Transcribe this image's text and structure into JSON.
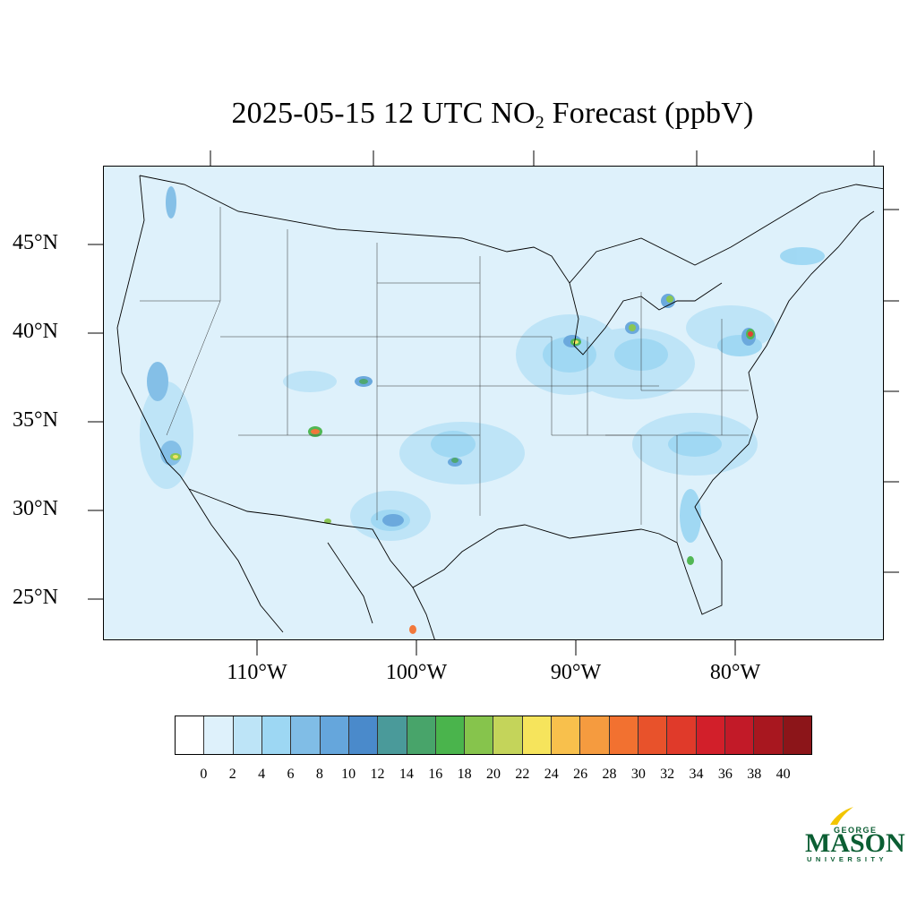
{
  "title": {
    "prefix": "2025-05-15 12 UTC NO",
    "subscript": "2",
    "suffix": " Forecast (ppbV)"
  },
  "map": {
    "region": "Contiguous United States",
    "background_color": "#def1fb",
    "lat_labels": [
      "45°N",
      "40°N",
      "35°N",
      "30°N",
      "25°N"
    ],
    "lon_labels": [
      "110°W",
      "100°W",
      "90°W",
      "80°W"
    ]
  },
  "colorbar": {
    "labels": [
      "0",
      "2",
      "4",
      "6",
      "8",
      "10",
      "12",
      "14",
      "16",
      "18",
      "20",
      "22",
      "24",
      "26",
      "28",
      "30",
      "32",
      "34",
      "36",
      "38",
      "40"
    ],
    "colors": [
      "#ffffff",
      "#def1fb",
      "#bde4f7",
      "#9dd7f3",
      "#80bde6",
      "#65a6dc",
      "#4a8acb",
      "#4a9a9a",
      "#48a46a",
      "#4ab44c",
      "#86c44c",
      "#c4d45a",
      "#f6e45c",
      "#f8c04c",
      "#f59b3f",
      "#f27130",
      "#e8522b",
      "#e03a2a",
      "#d21f2a",
      "#c21a28",
      "#a8171f",
      "#8c1519"
    ]
  },
  "logo": {
    "line1": "GEORGE",
    "line2": "MASON",
    "line3": "UNIVERSITY",
    "color": "#0b5e33",
    "accent": "#f2c500"
  }
}
